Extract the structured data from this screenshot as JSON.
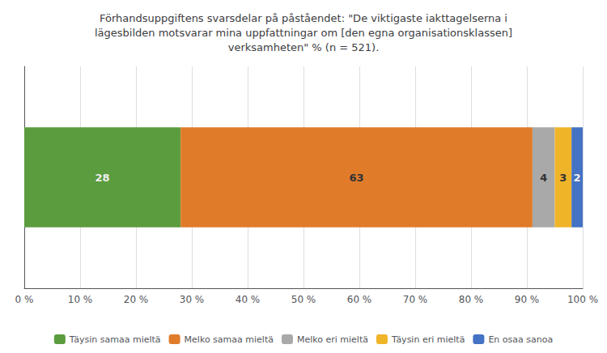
{
  "chart_data": {
    "type": "bar",
    "orientation": "horizontal",
    "stacked": true,
    "title": "Förhandsuppgiftens svarsdelar på påståendet: \"De viktigaste iakttagelserna i\nlägesbilden motsvarar mina uppfattningar om [den egna organisationsklassen]\nverksamheten\" % (n = 521).",
    "categories": [
      null
    ],
    "series": [
      {
        "name": "Täysin samaa mieltä",
        "color": "#5B9C3E",
        "values": [
          28
        ]
      },
      {
        "name": "Melko samaa mieltä",
        "color": "#E07B2A",
        "values": [
          63
        ]
      },
      {
        "name": "Melko eri mieltä",
        "color": "#A9A9A9",
        "values": [
          4
        ]
      },
      {
        "name": "Täysin eri mieltä",
        "color": "#F0B429",
        "values": [
          3
        ]
      },
      {
        "name": "En osaa sanoa",
        "color": "#4472C4",
        "values": [
          2
        ]
      }
    ],
    "xlim": [
      0,
      100
    ],
    "xticks": [
      {
        "value": 0,
        "label": "0 %"
      },
      {
        "value": 10,
        "label": "10 %"
      },
      {
        "value": 20,
        "label": "20 %"
      },
      {
        "value": 30,
        "label": "30 %"
      },
      {
        "value": 40,
        "label": "40 %"
      },
      {
        "value": 50,
        "label": "50 %"
      },
      {
        "value": 60,
        "label": "60 %"
      },
      {
        "value": 70,
        "label": "70 %"
      },
      {
        "value": 80,
        "label": "80 %"
      },
      {
        "value": 90,
        "label": "90 %"
      },
      {
        "value": 100,
        "label": "100 %"
      }
    ],
    "data_labels": true,
    "grid": true,
    "legend": "bottom",
    "tick_labels": "x"
  }
}
